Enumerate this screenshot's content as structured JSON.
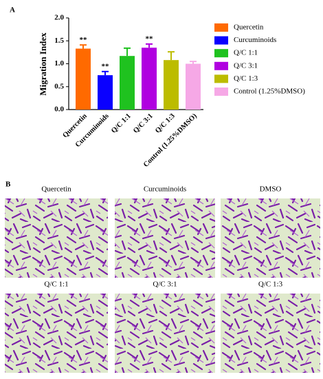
{
  "chart_data": {
    "type": "bar",
    "panel_label": "A",
    "ylabel": "Migration Index",
    "categories": [
      "Quercetin",
      "Curcuminoids",
      "Q/C 1:1",
      "Q/C 3:1",
      "Q/C 1:3",
      "Control (1.25%DMSO)"
    ],
    "values": [
      1.33,
      0.75,
      1.17,
      1.35,
      1.08,
      1.0
    ],
    "errors": [
      0.08,
      0.08,
      0.17,
      0.08,
      0.18,
      0.05
    ],
    "significance": [
      "**",
      "**",
      null,
      "**",
      null,
      null
    ],
    "colors": [
      "#ff6a00",
      "#0a00ff",
      "#1fc21f",
      "#b000e0",
      "#bcbc00",
      "#f6a8e6"
    ],
    "ylim": [
      0,
      2
    ],
    "yticks": [
      {
        "value": 0,
        "label": "0.0"
      },
      {
        "value": 0.5,
        "label": "0.5"
      },
      {
        "value": 1,
        "label": "1.0"
      },
      {
        "value": 1.5,
        "label": "1.5"
      },
      {
        "value": 2,
        "label": "2.0"
      }
    ]
  },
  "panel_b": {
    "label": "B",
    "images": [
      {
        "title": "Quercetin"
      },
      {
        "title": "Curcuminoids"
      },
      {
        "title": "DMSO"
      },
      {
        "title": "Q/C 1:1"
      },
      {
        "title": "Q/C 3:1"
      },
      {
        "title": "Q/C 1:3"
      }
    ]
  }
}
